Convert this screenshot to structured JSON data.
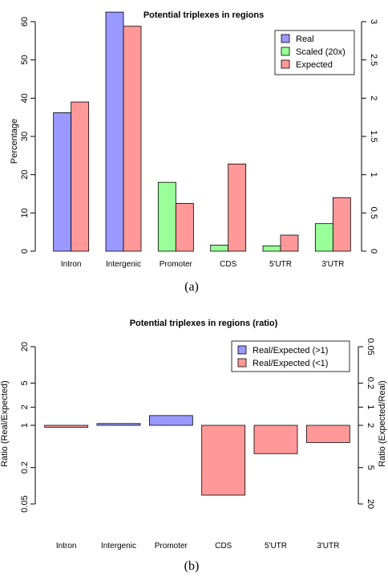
{
  "colors": {
    "blue": "#9999ff",
    "green": "#99ff99",
    "red": "#ff9999"
  },
  "chart_data": [
    {
      "type": "bar",
      "title": "Potential triplexes in regions",
      "caption": "(a)",
      "ylabel": "Percentage",
      "y2label": "",
      "ylim": [
        0,
        60
      ],
      "yticks": [
        "0",
        "10",
        "20",
        "30",
        "40",
        "50",
        "60"
      ],
      "y2lim": [
        0,
        3
      ],
      "y2ticks": [
        "0",
        "0.5",
        "1",
        "1.5",
        "2",
        "2.5",
        "3"
      ],
      "categories": [
        "Intron",
        "Intergenic",
        "Promoter",
        "CDS",
        "5'UTR",
        "3'UTR"
      ],
      "series": [
        {
          "name": "Real",
          "color": "#9999ff",
          "values": [
            36.2,
            62.5,
            null,
            null,
            null,
            null
          ]
        },
        {
          "name": "Scaled (20x)",
          "color": "#99ff99",
          "values": [
            null,
            null,
            18.0,
            1.6,
            1.4,
            7.2
          ]
        },
        {
          "name": "Expected",
          "color": "#ff9999",
          "values": [
            39.0,
            58.8,
            12.5,
            22.8,
            4.2,
            14.0
          ]
        }
      ],
      "legend_position": "top-right",
      "legend": [
        "Real",
        "Scaled (20x)",
        "Expected"
      ],
      "grid": false
    },
    {
      "type": "bar",
      "title": "Potential triplexes in regions (ratio)",
      "caption": "(b)",
      "ylabel": "Ratio (Real/Expected)",
      "y2label": "Ratio (Expected/Real)",
      "scale": "log",
      "ylim": [
        0.05,
        20
      ],
      "yticks": [
        "0.05",
        "0.2",
        "1",
        "2",
        "5",
        "20"
      ],
      "ytick_values": [
        0.05,
        0.2,
        1,
        2,
        5,
        20
      ],
      "y2ticks": [
        "20",
        "5",
        "2",
        "1",
        "0.2",
        "0.05"
      ],
      "categories": [
        "Intron",
        "Intergenic",
        "Promoter",
        "CDS",
        "5'UTR",
        "3'UTR"
      ],
      "values": [
        0.93,
        1.07,
        1.45,
        0.07,
        0.34,
        0.52
      ],
      "series": [
        {
          "name": "Real/Expected (>1)",
          "color": "#9999ff"
        },
        {
          "name": "Real/Expected (<1)",
          "color": "#ff9999"
        }
      ],
      "legend_position": "top-right",
      "legend": [
        "Real/Expected (>1)",
        "Real/Expected (<1)"
      ],
      "grid": false
    }
  ]
}
